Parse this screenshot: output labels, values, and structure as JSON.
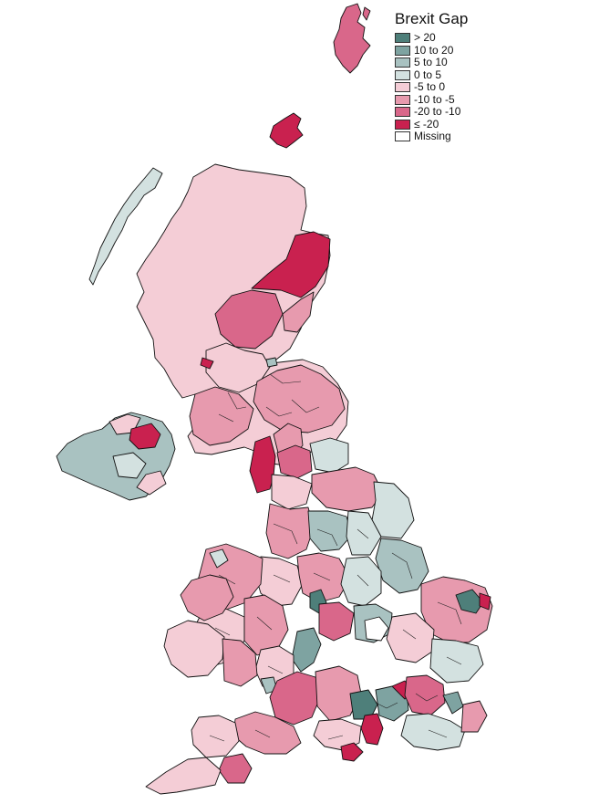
{
  "legend": {
    "title": "Brexit Gap",
    "items": [
      {
        "label": "> 20",
        "color": "#4e7f7a"
      },
      {
        "label": "10 to 20",
        "color": "#7ea3a1"
      },
      {
        "label": "5 to 10",
        "color": "#a9c2c1"
      },
      {
        "label": "0 to 5",
        "color": "#d3e1e0"
      },
      {
        "label": "-5 to 0",
        "color": "#f4cdd6"
      },
      {
        "label": "-10 to -5",
        "color": "#e79aae"
      },
      {
        "label": "-20 to -10",
        "color": "#d9678a"
      },
      {
        "label": "≤ -20",
        "color": "#c9214f"
      },
      {
        "label": "Missing",
        "color": "#ffffff"
      }
    ]
  }
}
